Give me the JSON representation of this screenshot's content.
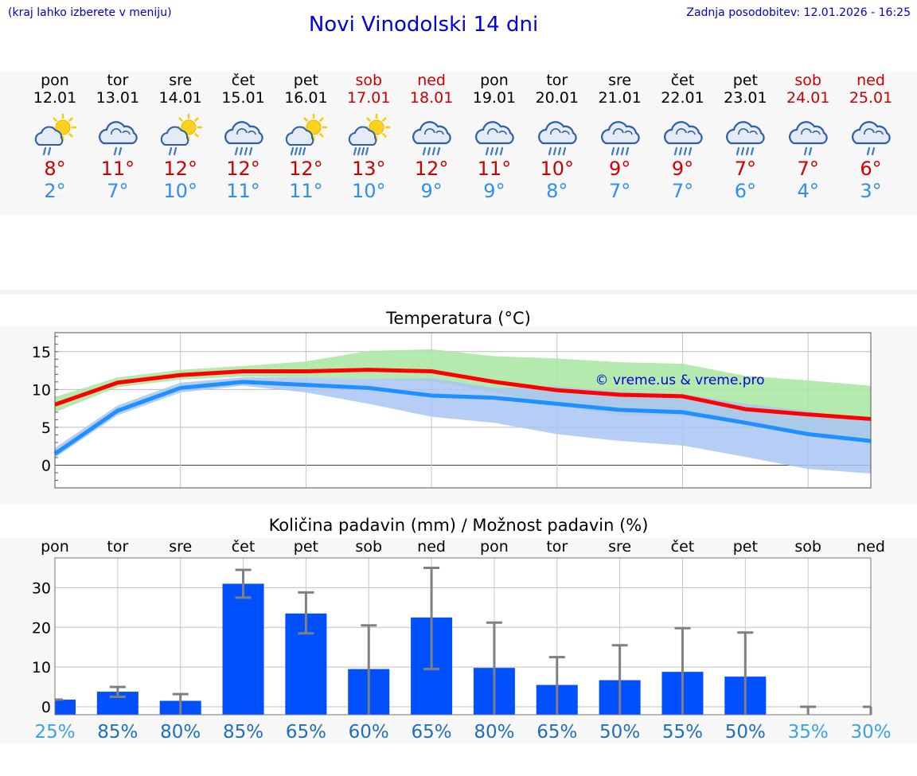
{
  "header": {
    "hint": "(kraj lahko izberete v meniju)",
    "updated_label": "Zadnja posodobitev: 12.01.2026 - 16:25",
    "title": "Novi Vinodolski 14 dni"
  },
  "days": [
    {
      "name": "pon",
      "date": "12.01",
      "tmax": "8°",
      "tmin": "2°",
      "icon": "sun-cloud-rain-icon",
      "weekend": false
    },
    {
      "name": "tor",
      "date": "13.01",
      "tmax": "11°",
      "tmin": "7°",
      "icon": "cloud-rain-icon",
      "weekend": false
    },
    {
      "name": "sre",
      "date": "14.01",
      "tmax": "12°",
      "tmin": "10°",
      "icon": "sun-cloud-rain-icon",
      "weekend": false
    },
    {
      "name": "čet",
      "date": "15.01",
      "tmax": "12°",
      "tmin": "11°",
      "icon": "cloud-heavy-rain-icon",
      "weekend": false
    },
    {
      "name": "pet",
      "date": "16.01",
      "tmax": "12°",
      "tmin": "11°",
      "icon": "sun-cloud-heavy-rain-icon",
      "weekend": false
    },
    {
      "name": "sob",
      "date": "17.01",
      "tmax": "13°",
      "tmin": "10°",
      "icon": "sun-cloud-heavy-rain-icon",
      "weekend": true
    },
    {
      "name": "ned",
      "date": "18.01",
      "tmax": "12°",
      "tmin": "9°",
      "icon": "cloud-heavy-rain-icon",
      "weekend": true
    },
    {
      "name": "pon",
      "date": "19.01",
      "tmax": "11°",
      "tmin": "9°",
      "icon": "cloud-heavy-rain-icon",
      "weekend": false
    },
    {
      "name": "tor",
      "date": "20.01",
      "tmax": "10°",
      "tmin": "8°",
      "icon": "cloud-heavy-rain-icon",
      "weekend": false
    },
    {
      "name": "sre",
      "date": "21.01",
      "tmax": "9°",
      "tmin": "7°",
      "icon": "cloud-heavy-rain-icon",
      "weekend": false
    },
    {
      "name": "čet",
      "date": "22.01",
      "tmax": "9°",
      "tmin": "7°",
      "icon": "cloud-heavy-rain-icon",
      "weekend": false
    },
    {
      "name": "pet",
      "date": "23.01",
      "tmax": "7°",
      "tmin": "6°",
      "icon": "cloud-heavy-rain-icon",
      "weekend": false
    },
    {
      "name": "sob",
      "date": "24.01",
      "tmax": "7°",
      "tmin": "4°",
      "icon": "cloud-rain-icon",
      "weekend": true
    },
    {
      "name": "ned",
      "date": "25.01",
      "tmax": "6°",
      "tmin": "3°",
      "icon": "cloud-rain-icon",
      "weekend": true
    }
  ],
  "chart_data": [
    {
      "type": "line",
      "title": "Temperatura (°C)",
      "watermark": "© vreme.us & vreme.pro",
      "ylim": [
        -3,
        17.5
      ],
      "yticks": [
        "0",
        "5",
        "10",
        "15"
      ],
      "ytick_values": [
        0,
        5,
        10,
        15
      ],
      "x": [
        0,
        1,
        2,
        3,
        4,
        5,
        6,
        7,
        8,
        9,
        10,
        11,
        12,
        13
      ],
      "series": [
        {
          "name": "max",
          "color": "#ff0000",
          "values": [
            8,
            10.9,
            11.9,
            12.4,
            12.4,
            12.6,
            12.4,
            11,
            9.9,
            9.3,
            9.1,
            7.4,
            6.7,
            6.1
          ],
          "band_low": [
            7,
            10.3,
            11.3,
            11.7,
            11.6,
            11.4,
            11.1,
            9.6,
            7.9,
            6.6,
            6.6,
            5.4,
            4.2,
            3.6
          ],
          "band_high": [
            9,
            11.6,
            12.6,
            13.1,
            13.7,
            15.1,
            15.3,
            14.4,
            14.1,
            13.6,
            13.4,
            11.8,
            11.2,
            10.5
          ],
          "band_color": "#a8e6a0"
        },
        {
          "name": "min",
          "color": "#1e90ff",
          "values": [
            1.5,
            7.2,
            10.2,
            11,
            10.6,
            10.2,
            9.2,
            8.9,
            8.1,
            7.3,
            7,
            5.6,
            4.1,
            3.2
          ],
          "band_low": [
            1,
            6.6,
            9.6,
            10.5,
            9.6,
            8.1,
            6.4,
            5.6,
            4.1,
            3.2,
            2.6,
            1.1,
            -0.5,
            -1.1
          ],
          "band_high": [
            2.3,
            7.9,
            10.9,
            11.6,
            11.6,
            11.4,
            11.5,
            10.2,
            10.4,
            9.7,
            9.4,
            8.1,
            7.1,
            6
          ],
          "band_color": "#a9c4f5"
        }
      ]
    },
    {
      "type": "bar",
      "title": "Količina padavin (mm) / Možnost padavin (%)",
      "categories": [
        "pon",
        "tor",
        "sre",
        "čet",
        "pet",
        "sob",
        "ned",
        "pon",
        "tor",
        "sre",
        "čet",
        "pet",
        "sob",
        "ned"
      ],
      "values": [
        1.8,
        3.8,
        1.5,
        31,
        23.5,
        9.5,
        22.5,
        9.8,
        5.5,
        6.7,
        8.8,
        7.6,
        0,
        0
      ],
      "err_low": [
        1.8,
        2.5,
        0,
        27.5,
        18.5,
        0,
        9.5,
        0,
        0,
        0,
        0,
        0,
        0,
        0
      ],
      "err_high": [
        1.8,
        5,
        3.2,
        34.5,
        28.8,
        20.5,
        35,
        21.2,
        12.5,
        15.5,
        19.8,
        18.7,
        0,
        0
      ],
      "bar_color": "#0050ff",
      "ylim": [
        -2,
        37.5
      ],
      "yticks": [
        "0",
        "10",
        "20",
        "30"
      ],
      "ytick_values": [
        0,
        10,
        20,
        30
      ],
      "probability": [
        "25%",
        "85%",
        "80%",
        "85%",
        "65%",
        "60%",
        "65%",
        "80%",
        "65%",
        "50%",
        "55%",
        "50%",
        "35%",
        "30%"
      ],
      "probability_values": [
        25,
        85,
        80,
        85,
        65,
        60,
        65,
        80,
        65,
        50,
        55,
        50,
        35,
        30
      ]
    }
  ]
}
